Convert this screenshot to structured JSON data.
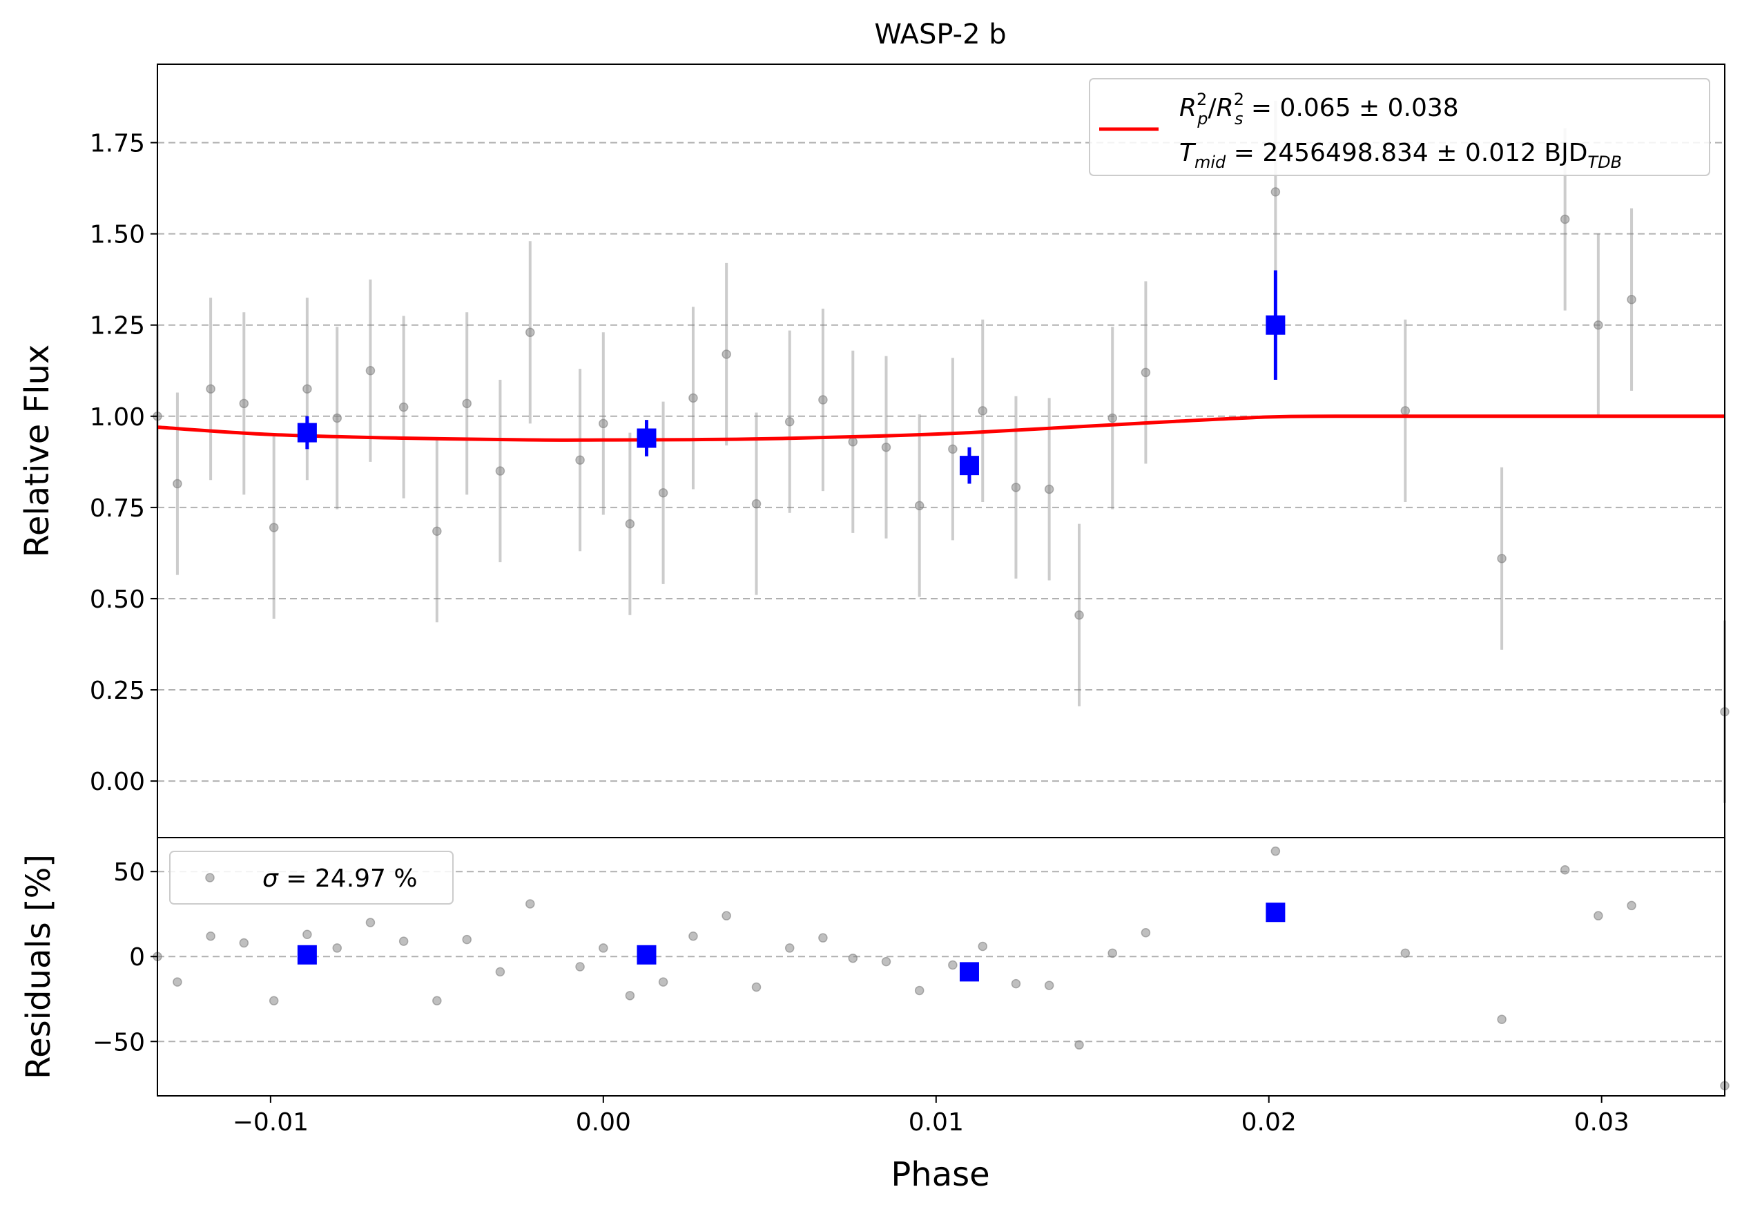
{
  "chart_data": [
    {
      "type": "scatter",
      "title": "WASP-2 b",
      "xlabel": "",
      "ylabel": "Relative Flux",
      "xlim": [
        -0.0134,
        0.0337
      ],
      "ylim": [
        -0.155,
        1.965
      ],
      "yticks": [
        0.0,
        0.25,
        0.5,
        0.75,
        1.0,
        1.25,
        1.5,
        1.75
      ],
      "ytick_labels": [
        "0.00",
        "0.25",
        "0.50",
        "0.75",
        "1.00",
        "1.25",
        "1.50",
        "1.75"
      ],
      "grid": "horizontal-dashed",
      "legend_position": "top-right",
      "legend": {
        "line1_lhs": "R",
        "line1_rhs": " = 0.065 ± 0.038",
        "line2_lhs": "T",
        "line2_sub": "mid",
        "line2_rhs": " = 2456498.834 ± 0.012 BJD",
        "line2_unit_sub": "TDB",
        "sup": "2",
        "sub_p": "p",
        "sub_s": "s"
      },
      "colors": {
        "data": "#808080",
        "binned": "#0000ff",
        "model": "#ff0000",
        "grid": "#b0b0b0"
      },
      "data_points": {
        "x": [
          -0.0134,
          -0.0128,
          -0.0118,
          -0.0108,
          -0.0099,
          -0.0089,
          -0.008,
          -0.007,
          -0.006,
          -0.005,
          -0.0041,
          -0.0031,
          -0.0022,
          -0.0007,
          0.0,
          0.0008,
          0.0018,
          0.0027,
          0.0037,
          0.0046,
          0.0056,
          0.0066,
          0.0075,
          0.0085,
          0.0095,
          0.0105,
          0.0114,
          0.0124,
          0.0134,
          0.0143,
          0.0153,
          0.0163,
          0.0202,
          0.0241,
          0.027,
          0.0289,
          0.0299,
          0.0309,
          0.0337
        ],
        "y": [
          1.0,
          0.815,
          1.075,
          1.035,
          0.695,
          1.075,
          0.995,
          1.125,
          1.025,
          0.685,
          1.035,
          0.85,
          1.23,
          0.88,
          0.98,
          0.705,
          0.79,
          1.05,
          1.17,
          0.76,
          0.985,
          1.045,
          0.93,
          0.915,
          0.755,
          0.91,
          1.015,
          0.805,
          0.8,
          0.455,
          0.995,
          1.12,
          1.615,
          1.015,
          0.61,
          1.54,
          1.25,
          1.32,
          0.19
        ],
        "yerr": 0.25
      },
      "binned_points": {
        "x": [
          -0.0089,
          0.0013,
          0.011,
          0.0202
        ],
        "y": [
          0.955,
          0.94,
          0.865,
          1.25
        ],
        "yerr": [
          0.045,
          0.05,
          0.05,
          0.15
        ]
      },
      "model_curve": {
        "x": [
          -0.0134,
          -0.01,
          -0.006,
          -0.002,
          0.0,
          0.004,
          0.008,
          0.011,
          0.014,
          0.017,
          0.02,
          0.022,
          0.026,
          0.03,
          0.0337
        ],
        "y": [
          0.97,
          0.95,
          0.94,
          0.935,
          0.935,
          0.937,
          0.945,
          0.955,
          0.97,
          0.985,
          0.998,
          1.0,
          1.0,
          1.0,
          1.0
        ]
      }
    },
    {
      "type": "scatter",
      "xlabel": "Phase",
      "ylabel": "Residuals [%]",
      "xlim": [
        -0.0134,
        0.0337
      ],
      "ylim": [
        -82,
        70
      ],
      "yticks": [
        -50,
        0,
        50
      ],
      "ytick_labels": [
        "−50",
        "0",
        "50"
      ],
      "xticks": [
        -0.01,
        0.0,
        0.01,
        0.02,
        0.03
      ],
      "xtick_labels": [
        "−0.01",
        "0.00",
        "0.01",
        "0.02",
        "0.03"
      ],
      "grid": "horizontal-dashed",
      "legend_position": "top-left",
      "legend": {
        "sigma_symbol": "σ",
        "text": " = 24.97 %"
      },
      "data_points": {
        "x": [
          -0.0134,
          -0.0128,
          -0.0118,
          -0.0108,
          -0.0099,
          -0.0089,
          -0.008,
          -0.007,
          -0.006,
          -0.005,
          -0.0041,
          -0.0031,
          -0.0022,
          -0.0007,
          0.0,
          0.0008,
          0.0018,
          0.0027,
          0.0037,
          0.0046,
          0.0056,
          0.0066,
          0.0075,
          0.0085,
          0.0095,
          0.0105,
          0.0114,
          0.0124,
          0.0134,
          0.0143,
          0.0153,
          0.0163,
          0.0202,
          0.0241,
          0.027,
          0.0289,
          0.0299,
          0.0309,
          0.0337
        ],
        "y": [
          0,
          -15,
          12,
          8,
          -26,
          13,
          5,
          20,
          9,
          -26,
          10,
          -9,
          31,
          -6,
          5,
          -23,
          -15,
          12,
          24,
          -18,
          5,
          11,
          -1,
          -3,
          -20,
          -5,
          6,
          -16,
          -17,
          -52,
          2,
          14,
          62,
          2,
          -37,
          51,
          24,
          30,
          -76
        ]
      },
      "binned_points": {
        "x": [
          -0.0089,
          0.0013,
          0.011,
          0.0202
        ],
        "y": [
          1,
          1,
          -9,
          26
        ]
      }
    }
  ]
}
